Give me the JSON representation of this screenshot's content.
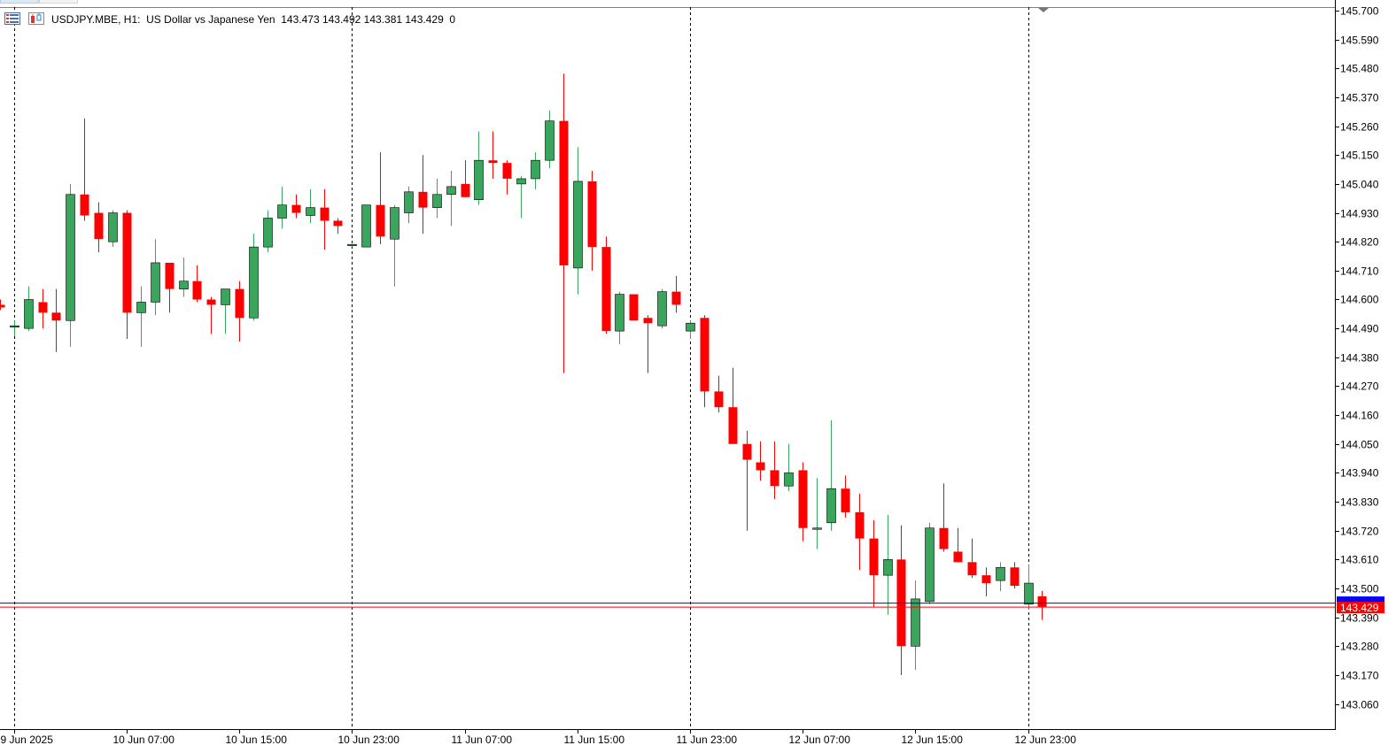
{
  "header": {
    "symbol": "USDJPY.MBE",
    "timeframe": "H1",
    "description": "US Dollar vs Japanese Yen",
    "ohlc": "143.473 143.492 143.381 143.429",
    "volume": "0",
    "line": "USDJPY.MBE, H1:  US Dollar vs Japanese Yen  143.473 143.492 143.381 143.429  0"
  },
  "icons": [
    "menu-list-icon",
    "chart-type-icon"
  ],
  "chart_data": {
    "type": "candlestick",
    "title": "USDJPY.MBE, H1: US Dollar vs Japanese Yen",
    "ylim": [
      142.938,
      145.71
    ],
    "y_ticks": [
      "145.700",
      "145.590",
      "145.480",
      "145.370",
      "145.260",
      "145.150",
      "145.040",
      "144.930",
      "144.820",
      "144.710",
      "144.600",
      "144.490",
      "144.380",
      "144.270",
      "144.160",
      "144.050",
      "143.940",
      "143.830",
      "143.720",
      "143.610",
      "143.500",
      "143.390",
      "143.280",
      "143.170",
      "143.060"
    ],
    "x_ticks": [
      {
        "label": "9 Jun 2025",
        "bar": 1
      },
      {
        "label": "10 Jun 07:00",
        "bar": 9
      },
      {
        "label": "10 Jun 15:00",
        "bar": 17
      },
      {
        "label": "10 Jun 23:00",
        "bar": 25
      },
      {
        "label": "11 Jun 07:00",
        "bar": 33
      },
      {
        "label": "11 Jun 15:00",
        "bar": 41
      },
      {
        "label": "11 Jun 23:00",
        "bar": 49
      },
      {
        "label": "12 Jun 07:00",
        "bar": 57
      },
      {
        "label": "12 Jun 15:00",
        "bar": 65
      },
      {
        "label": "12 Jun 23:00",
        "bar": 73
      }
    ],
    "period_separators": [
      1,
      25,
      49,
      73
    ],
    "bid_line": 143.444,
    "last_price": 143.429,
    "last_price_label": "143.429",
    "colors": {
      "bull": "#3aa55d",
      "bear": "#ff0000",
      "wick": "#000000",
      "bid_line": "#0000ff",
      "last_line": "#ff0000",
      "grid": "#000000"
    },
    "candles": [
      [
        144.58,
        144.6,
        144.56,
        144.57
      ],
      [
        144.5,
        144.52,
        144.46,
        144.5
      ],
      [
        144.49,
        144.65,
        144.48,
        144.6
      ],
      [
        144.59,
        144.64,
        144.49,
        144.55
      ],
      [
        144.55,
        144.64,
        144.4,
        144.52
      ],
      [
        144.52,
        145.04,
        144.42,
        145.0
      ],
      [
        145.0,
        145.29,
        144.9,
        144.92
      ],
      [
        144.93,
        144.97,
        144.78,
        144.83
      ],
      [
        144.82,
        144.94,
        144.8,
        144.93
      ],
      [
        144.93,
        144.94,
        144.45,
        144.55
      ],
      [
        144.55,
        144.65,
        144.42,
        144.59
      ],
      [
        144.59,
        144.83,
        144.54,
        144.74
      ],
      [
        144.74,
        144.74,
        144.55,
        144.64
      ],
      [
        144.64,
        144.76,
        144.61,
        144.67
      ],
      [
        144.67,
        144.73,
        144.59,
        144.6
      ],
      [
        144.6,
        144.61,
        144.47,
        144.58
      ],
      [
        144.58,
        144.64,
        144.47,
        144.64
      ],
      [
        144.64,
        144.67,
        144.44,
        144.53
      ],
      [
        144.53,
        144.85,
        144.52,
        144.8
      ],
      [
        144.8,
        144.94,
        144.78,
        144.91
      ],
      [
        144.91,
        145.03,
        144.87,
        144.96
      ],
      [
        144.96,
        145.0,
        144.91,
        144.93
      ],
      [
        144.92,
        145.02,
        144.89,
        144.95
      ],
      [
        144.95,
        145.02,
        144.79,
        144.9
      ],
      [
        144.9,
        144.91,
        144.85,
        144.88
      ],
      [
        144.81,
        144.81,
        144.8,
        144.81
      ],
      [
        144.8,
        144.96,
        144.8,
        144.96
      ],
      [
        144.96,
        145.16,
        144.81,
        144.84
      ],
      [
        144.83,
        144.96,
        144.65,
        144.95
      ],
      [
        144.93,
        145.03,
        144.89,
        145.01
      ],
      [
        145.01,
        145.15,
        144.85,
        144.95
      ],
      [
        144.95,
        145.06,
        144.91,
        145.0
      ],
      [
        145.0,
        145.09,
        144.88,
        145.03
      ],
      [
        145.04,
        145.13,
        144.99,
        144.99
      ],
      [
        144.98,
        145.24,
        144.96,
        145.13
      ],
      [
        145.13,
        145.24,
        145.06,
        145.12
      ],
      [
        145.12,
        145.13,
        145.0,
        145.06
      ],
      [
        145.04,
        145.07,
        144.91,
        145.06
      ],
      [
        145.06,
        145.16,
        145.02,
        145.13
      ],
      [
        145.13,
        145.32,
        145.1,
        145.28
      ],
      [
        145.28,
        145.46,
        144.32,
        144.73
      ],
      [
        144.72,
        145.18,
        144.62,
        145.05
      ],
      [
        145.05,
        145.09,
        144.71,
        144.8
      ],
      [
        144.8,
        144.84,
        144.47,
        144.48
      ],
      [
        144.48,
        144.63,
        144.43,
        144.62
      ],
      [
        144.62,
        144.62,
        144.52,
        144.52
      ],
      [
        144.53,
        144.54,
        144.32,
        144.51
      ],
      [
        144.5,
        144.64,
        144.49,
        144.63
      ],
      [
        144.63,
        144.69,
        144.55,
        144.58
      ],
      [
        144.48,
        144.52,
        144.45,
        144.51
      ],
      [
        144.53,
        144.54,
        144.19,
        144.25
      ],
      [
        144.25,
        144.31,
        144.17,
        144.19
      ],
      [
        144.19,
        144.34,
        144.05,
        144.05
      ],
      [
        144.05,
        144.1,
        143.72,
        143.99
      ],
      [
        143.98,
        144.06,
        143.91,
        143.95
      ],
      [
        143.95,
        144.06,
        143.84,
        143.89
      ],
      [
        143.89,
        144.05,
        143.87,
        143.94
      ],
      [
        143.95,
        143.98,
        143.68,
        143.73
      ],
      [
        143.73,
        143.92,
        143.65,
        143.73
      ],
      [
        143.75,
        144.14,
        143.72,
        143.88
      ],
      [
        143.88,
        143.93,
        143.77,
        143.79
      ],
      [
        143.79,
        143.86,
        143.57,
        143.69
      ],
      [
        143.69,
        143.76,
        143.43,
        143.55
      ],
      [
        143.55,
        143.78,
        143.4,
        143.61
      ],
      [
        143.61,
        143.74,
        143.17,
        143.28
      ],
      [
        143.28,
        143.53,
        143.19,
        143.46
      ],
      [
        143.45,
        143.75,
        143.44,
        143.73
      ],
      [
        143.73,
        143.9,
        143.64,
        143.65
      ],
      [
        143.64,
        143.73,
        143.6,
        143.6
      ],
      [
        143.6,
        143.69,
        143.54,
        143.55
      ],
      [
        143.55,
        143.58,
        143.47,
        143.52
      ],
      [
        143.53,
        143.6,
        143.49,
        143.58
      ],
      [
        143.58,
        143.6,
        143.5,
        143.51
      ],
      [
        143.44,
        143.59,
        143.42,
        143.52
      ],
      [
        143.47,
        143.49,
        143.38,
        143.43
      ]
    ]
  }
}
